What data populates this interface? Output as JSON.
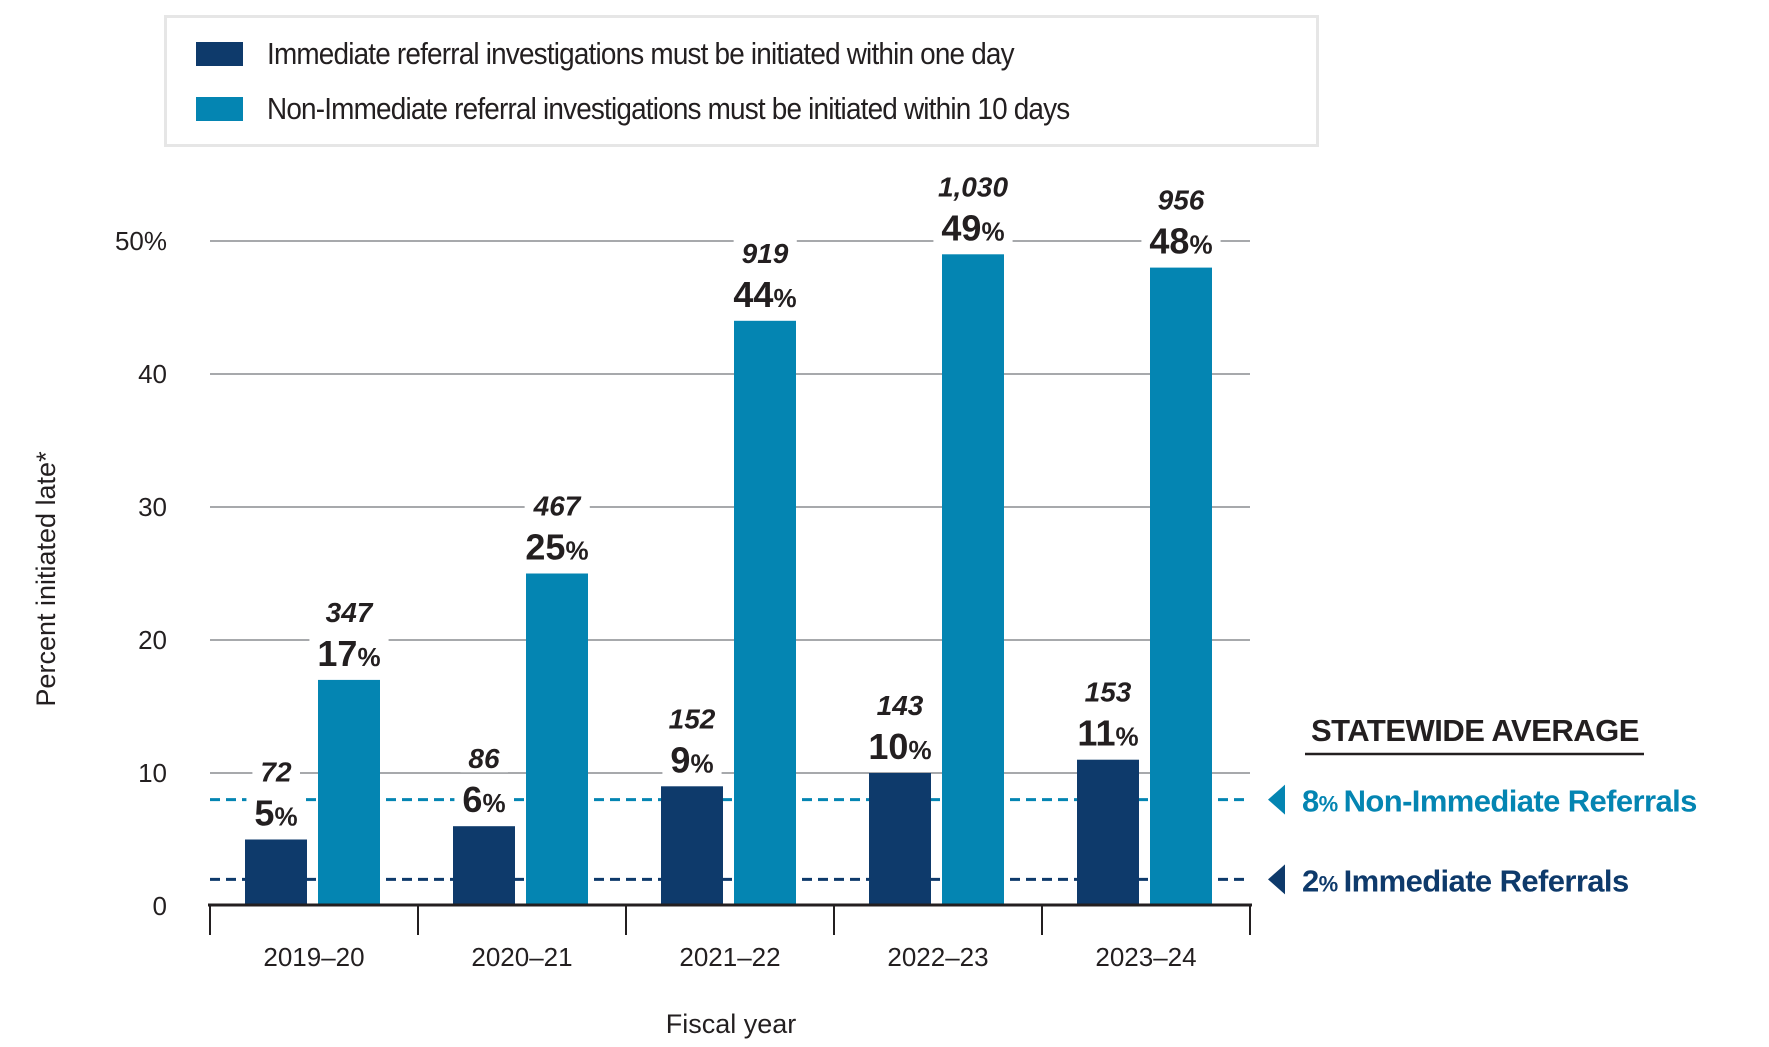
{
  "legend": {
    "items": [
      {
        "label": "Immediate referral investigations must be initiated within one day",
        "color": "#0e3a6b"
      },
      {
        "label": "Non-Immediate referral investigations must be initiated within 10 days",
        "color": "#0485b2"
      }
    ]
  },
  "chart_data": {
    "type": "bar",
    "title": "",
    "xlabel": "Fiscal year",
    "ylabel": "Percent initiated late*",
    "ylim": [
      0,
      50
    ],
    "yticks": [
      0,
      10,
      20,
      30,
      40,
      50
    ],
    "ytick_labels": [
      "0",
      "10",
      "20",
      "30",
      "40",
      "50%"
    ],
    "grid": true,
    "legend_position": "top",
    "categories": [
      "2019–20",
      "2020–21",
      "2021–22",
      "2022–23",
      "2023–24"
    ],
    "series": [
      {
        "name": "Immediate referral investigations must be initiated within one day",
        "color": "#0e3a6b",
        "values": [
          5,
          6,
          9,
          10,
          11
        ],
        "counts": [
          "72",
          "86",
          "152",
          "143",
          "153"
        ]
      },
      {
        "name": "Non-Immediate referral investigations must be initiated within 10 days",
        "color": "#0485b2",
        "values": [
          17,
          25,
          44,
          49,
          48
        ],
        "counts": [
          "347",
          "467",
          "919",
          "1,030",
          "956"
        ]
      }
    ],
    "reference_lines": {
      "title": "STATEWIDE AVERAGE",
      "lines": [
        {
          "value": 8,
          "pct_text": "8",
          "pct_sign": "%",
          "label": "Non-Immediate Referrals",
          "color": "#0485b2"
        },
        {
          "value": 2,
          "pct_text": "2",
          "pct_sign": "%",
          "label": "Immediate Referrals",
          "color": "#0e3a6b"
        }
      ]
    }
  }
}
